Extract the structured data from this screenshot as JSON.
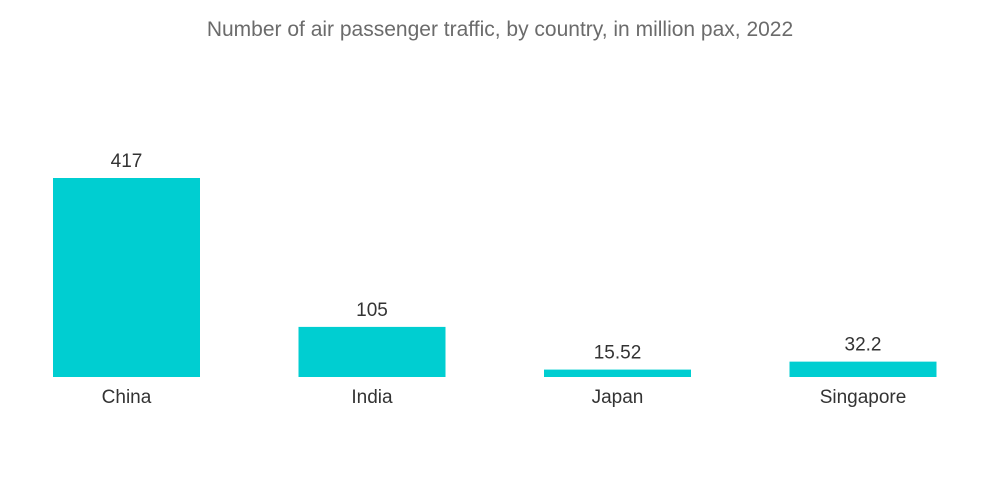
{
  "chart_data": {
    "type": "bar",
    "title": "Number of air passenger traffic, by country, in million pax, 2022",
    "categories": [
      "China",
      "India",
      "Japan",
      "Singapore"
    ],
    "values": [
      417,
      105,
      15.52,
      32.2
    ],
    "value_labels": [
      "417",
      "105",
      "15.52",
      "32.2"
    ],
    "xlabel": "",
    "ylabel": "",
    "ylim": [
      0,
      417
    ],
    "grid": false,
    "legend": "none",
    "colors": {
      "bar": "#00CED1"
    }
  }
}
